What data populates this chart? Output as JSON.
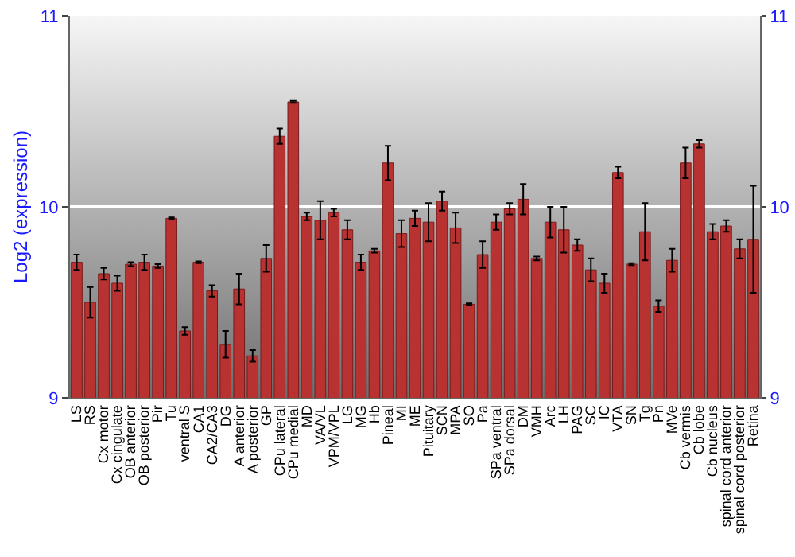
{
  "chart_data": {
    "type": "bar",
    "ylabel": "Log2 (expression)",
    "categories": [
      "LS",
      "RS",
      "Cx motor",
      "Cx cingulate",
      "OB anterior",
      "OB posterior",
      "Pir",
      "Tu",
      "ventral S",
      "CA1",
      "CA2/CA3",
      "DG",
      "A anterior",
      "A posterior",
      "GP",
      "CPu lateral",
      "CPu medial",
      "MD",
      "VA/VL",
      "VPM/VPL",
      "LG",
      "MG",
      "Hb",
      "Pineal",
      "MI",
      "ME",
      "Pituitary",
      "SCN",
      "MPA",
      "SO",
      "Pa",
      "SPa ventral",
      "SPa dorsal",
      "DM",
      "VMH",
      "Arc",
      "LH",
      "PAG",
      "SC",
      "IC",
      "VTA",
      "SN",
      "Tg",
      "Pn",
      "MVe",
      "Cb vermis",
      "Cb lobe",
      "Cb nucleus",
      "spinal cord anterior",
      "spinal cord posterior",
      "Retina"
    ],
    "values": [
      9.71,
      9.5,
      9.65,
      9.6,
      9.7,
      9.71,
      9.69,
      9.94,
      9.35,
      9.71,
      9.56,
      9.28,
      9.57,
      9.22,
      9.73,
      10.37,
      10.55,
      9.95,
      9.93,
      9.97,
      9.88,
      9.71,
      9.77,
      10.23,
      9.86,
      9.94,
      9.92,
      10.03,
      9.89,
      9.49,
      9.75,
      9.92,
      9.99,
      10.04,
      9.73,
      9.92,
      9.88,
      9.8,
      9.67,
      9.6,
      10.18,
      9.7,
      9.87,
      9.48,
      9.72,
      10.23,
      10.33,
      9.87,
      9.9,
      9.78,
      9.83
    ],
    "errors": [
      0.04,
      0.08,
      0.03,
      0.04,
      0.01,
      0.04,
      0.01,
      0.005,
      0.02,
      0.005,
      0.03,
      0.07,
      0.08,
      0.03,
      0.07,
      0.04,
      0.005,
      0.02,
      0.1,
      0.02,
      0.05,
      0.04,
      0.01,
      0.09,
      0.07,
      0.04,
      0.1,
      0.05,
      0.08,
      0.005,
      0.07,
      0.04,
      0.03,
      0.08,
      0.01,
      0.08,
      0.12,
      0.03,
      0.06,
      0.05,
      0.03,
      0.005,
      0.15,
      0.03,
      0.06,
      0.08,
      0.02,
      0.04,
      0.03,
      0.05,
      0.28
    ],
    "color": "#b83232",
    "ylim": [
      9,
      11
    ],
    "yticks": [
      9,
      10,
      11
    ],
    "y2lim": [
      9,
      11
    ],
    "y2ticks": [
      9,
      10,
      11
    ],
    "grid": "y"
  }
}
